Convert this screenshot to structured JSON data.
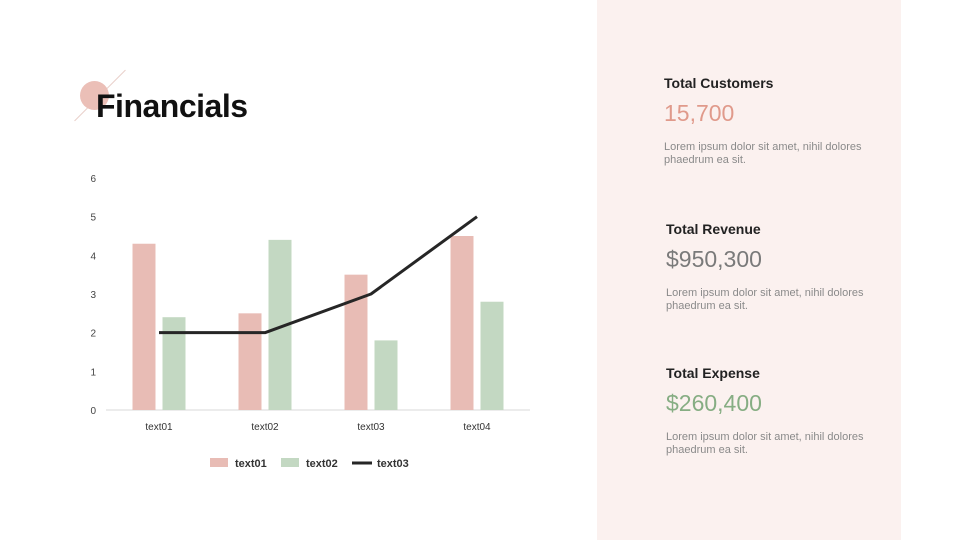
{
  "page": {
    "title": "Financials"
  },
  "colors": {
    "series1": "#e8bcb5",
    "series2": "#c3d8c2",
    "series3": "#262626",
    "panel_bg": "#fbf1ef"
  },
  "chart_data": {
    "type": "bar",
    "categories": [
      "text01",
      "text02",
      "text03",
      "text04"
    ],
    "series": [
      {
        "name": "text01",
        "type": "bar",
        "values": [
          4.3,
          2.5,
          3.5,
          4.5
        ]
      },
      {
        "name": "text02",
        "type": "bar",
        "values": [
          2.4,
          4.4,
          1.8,
          2.8
        ]
      },
      {
        "name": "text03",
        "type": "line",
        "values": [
          2.0,
          2.0,
          3.0,
          5.0
        ]
      }
    ],
    "yticks": [
      "0",
      "1",
      "2",
      "3",
      "4",
      "5",
      "6"
    ],
    "ylim": [
      0,
      6
    ],
    "grid": false,
    "legend": "bottom"
  },
  "stats": [
    {
      "label": "Total Customers",
      "value": "15,700",
      "color": "#e09a8b",
      "desc": "Lorem ipsum dolor sit amet, nihil dolores phaedrum ea sit."
    },
    {
      "label": "Total Revenue",
      "value": "$950,300",
      "color": "#7a7a7a",
      "desc": "Lorem ipsum dolor sit amet, nihil dolores phaedrum ea sit."
    },
    {
      "label": "Total Expense",
      "value": "$260,400",
      "color": "#86ad83",
      "desc": "Lorem ipsum dolor sit amet, nihil dolores phaedrum ea sit."
    }
  ]
}
